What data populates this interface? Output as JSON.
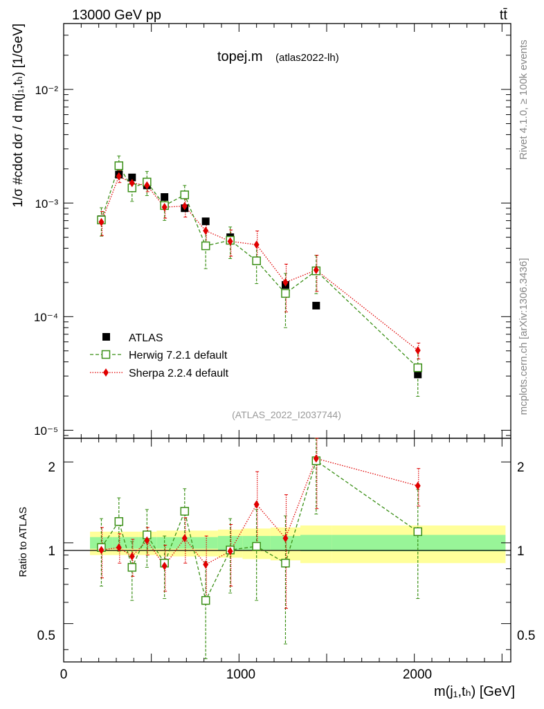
{
  "header": {
    "beam_label": "13000 GeV pp",
    "process_label": "tt̄",
    "plot_title": "topej.m",
    "plot_subtitle": "(atlas2022-lh)",
    "analysis_id": "(ATLAS_2022_I2037744)",
    "side_label_rivet": "Rivet 4.1.0, ≥ 100k events",
    "side_label_site": "mcplots.cern.ch [arXiv:1306.3436]"
  },
  "axes": {
    "ylabel_main": "1/σ #cdot dσ / d m(j₁,tₕ) [1/GeV]",
    "ylabel_ratio": "Ratio to ATLAS",
    "xlabel": "m(j₁,tₕ) [GeV]",
    "main_yticks": [
      "10⁻²",
      "10⁻³",
      "10⁻⁴",
      "10⁻⁵"
    ],
    "ratio_yticks": [
      "2",
      "1",
      "0.5"
    ],
    "ratio_yticks_right": [
      "2",
      "1",
      "0.5"
    ],
    "xticks": [
      "0",
      "1000",
      "2000"
    ]
  },
  "legend": {
    "atlas": "ATLAS",
    "herwig": "Herwig 7.2.1 default",
    "sherpa": "Sherpa 2.2.4 default"
  },
  "colors": {
    "data": "#000000",
    "herwig": "#3a8f16",
    "sherpa": "#e00000",
    "band_inner": "#98f598",
    "band_outer": "#ffff9a",
    "side_text": "#888888"
  },
  "chart_data": {
    "type": "scatter",
    "x_range": [
      0,
      2550
    ],
    "main_y_range_log": [
      8.5e-06,
      0.038
    ],
    "ratio_y_range_log": [
      0.36,
      2.45
    ],
    "x": [
      215,
      315,
      390,
      475,
      575,
      690,
      810,
      950,
      1100,
      1265,
      1440,
      2020
    ],
    "bin_edges": [
      150,
      280,
      350,
      430,
      530,
      620,
      760,
      880,
      1020,
      1180,
      1350,
      1530,
      2520
    ],
    "series": [
      {
        "name": "ATLAS",
        "values": [
          0.00072,
          0.00178,
          0.00168,
          0.00143,
          0.00113,
          0.0009,
          0.00069,
          0.0005,
          0.00031,
          0.00019,
          0.000125,
          3.1e-05
        ]
      },
      {
        "name": "Herwig 7.2.1 default",
        "values": [
          0.00071,
          0.00213,
          0.00136,
          0.00153,
          0.00095,
          0.00118,
          0.00042,
          0.00047,
          0.00031,
          0.00016,
          0.000253,
          3.55e-05
        ],
        "errors_rel": [
          0.28,
          0.22,
          0.24,
          0.24,
          0.26,
          0.21,
          0.37,
          0.31,
          0.37,
          0.5,
          0.37,
          0.44
        ]
      },
      {
        "name": "Sherpa 2.2.4 default",
        "values": [
          0.00068,
          0.00172,
          0.0015,
          0.00143,
          0.00092,
          0.00094,
          0.00057,
          0.00046,
          0.00043,
          0.0002,
          0.000257,
          5.05e-05
        ],
        "errors_rel": [
          0.24,
          0.12,
          0.15,
          0.12,
          0.2,
          0.2,
          0.28,
          0.26,
          0.32,
          0.45,
          0.35,
          0.16
        ]
      }
    ],
    "ratio": {
      "herwig": [
        0.96,
        1.2,
        0.81,
        1.07,
        0.84,
        1.31,
        0.61,
        0.94,
        0.97,
        0.84,
        2.02,
        1.1
      ],
      "herwig_errors": [
        0.27,
        0.27,
        0.2,
        0.26,
        0.22,
        0.28,
        0.24,
        0.29,
        0.36,
        0.42,
        0.74,
        0.48
      ],
      "sherpa": [
        0.94,
        0.96,
        0.89,
        1.02,
        0.82,
        1.04,
        0.83,
        0.93,
        1.39,
        1.04,
        2.06,
        1.63
      ],
      "sherpa_errors": [
        0.2,
        0.12,
        0.14,
        0.12,
        0.16,
        0.2,
        0.23,
        0.24,
        0.45,
        0.47,
        0.72,
        0.26
      ],
      "band_inner": [
        0.05,
        0.05,
        0.05,
        0.05,
        0.05,
        0.05,
        0.05,
        0.06,
        0.06,
        0.06,
        0.07,
        0.07
      ],
      "band_outer": [
        0.1,
        0.1,
        0.1,
        0.1,
        0.11,
        0.11,
        0.11,
        0.12,
        0.13,
        0.14,
        0.16,
        0.16
      ]
    }
  }
}
